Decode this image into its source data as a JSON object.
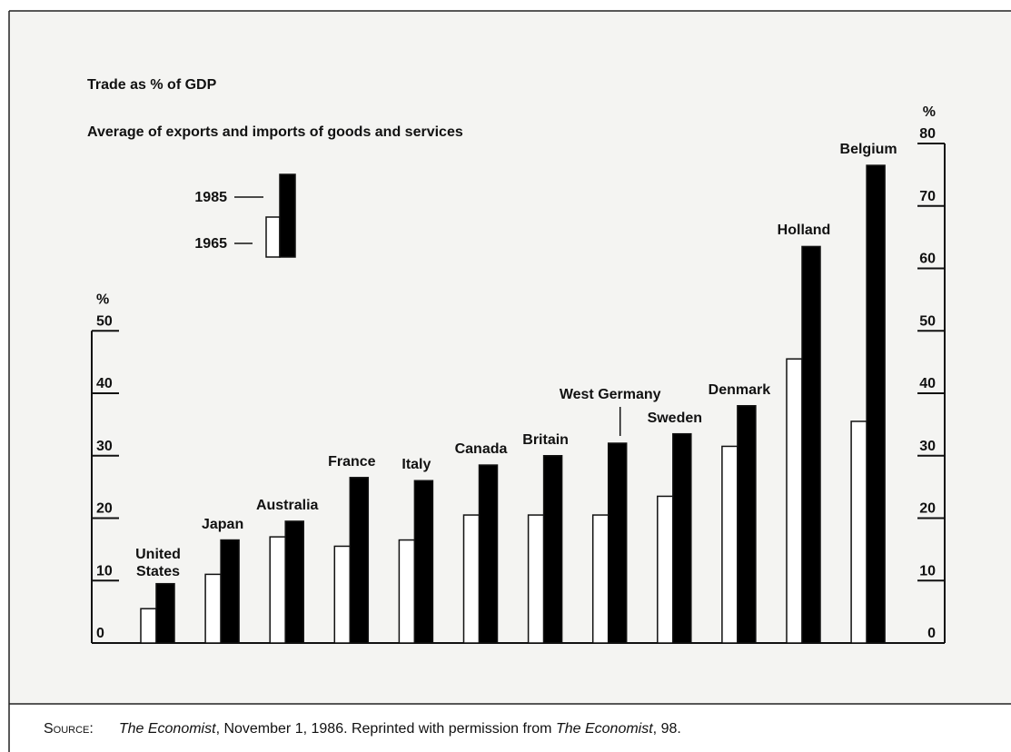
{
  "chart_data": {
    "type": "bar",
    "title": "Trade as % of GDP",
    "subtitle": "Average of exports and imports of goods and services",
    "categories": [
      "United States",
      "Japan",
      "Australia",
      "France",
      "Italy",
      "Canada",
      "Britain",
      "West Germany",
      "Sweden",
      "Denmark",
      "Holland",
      "Belgium"
    ],
    "series": [
      {
        "name": "1965",
        "color": "#ffffff",
        "values": [
          5.5,
          11,
          17,
          15.5,
          16.5,
          20.5,
          20.5,
          20.5,
          23.5,
          31.5,
          45.5,
          35.5
        ]
      },
      {
        "name": "1985",
        "color": "#000000",
        "values": [
          9.5,
          16.5,
          19.5,
          26.5,
          26,
          28.5,
          30,
          32,
          33.5,
          38,
          63.5,
          76.5
        ]
      }
    ],
    "ylabel": "%",
    "ylim": [
      0,
      80
    ],
    "yticks": [
      0,
      10,
      20,
      30,
      40,
      50
    ],
    "y2label": "%",
    "y2lim": [
      0,
      80
    ],
    "y2ticks": [
      0,
      10,
      20,
      30,
      40,
      50,
      60,
      70,
      80
    ],
    "source_label": "Source:",
    "source_parts": [
      "The Economist",
      ", November 1, 1986. Reprinted with permission from ",
      "The Economist",
      ", 98."
    ]
  }
}
